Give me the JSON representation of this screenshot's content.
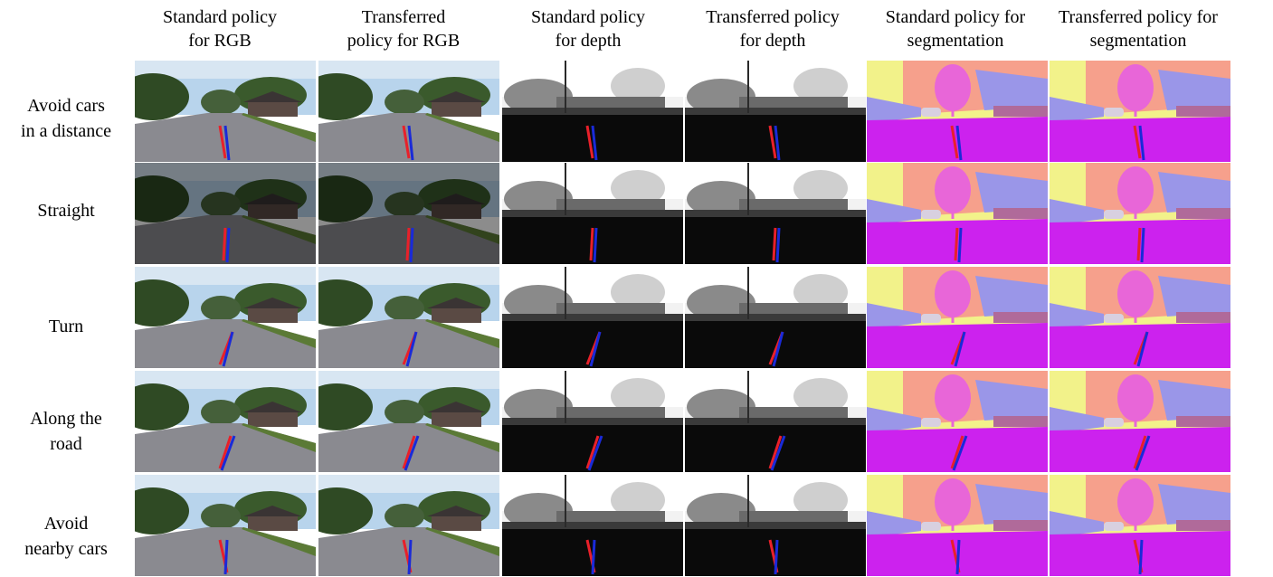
{
  "columns": [
    {
      "label": "Standard policy\nfor RGB",
      "modality": "rgb"
    },
    {
      "label": "Transferred\npolicy for RGB",
      "modality": "rgb"
    },
    {
      "label": "Standard policy\nfor depth",
      "modality": "depth"
    },
    {
      "label": "Transferred policy\nfor depth",
      "modality": "depth"
    },
    {
      "label": "Standard policy for\nsegmentation",
      "modality": "seg"
    },
    {
      "label": "Transferred policy for\nsegmentation",
      "modality": "seg"
    }
  ],
  "rows": [
    {
      "label": "Avoid cars\nin a distance"
    },
    {
      "label": "Straight"
    },
    {
      "label": "Turn"
    },
    {
      "label": "Along the\nroad"
    },
    {
      "label": "Avoid\nnearby cars"
    }
  ],
  "colors": {
    "red_line": "#e8202a",
    "blue_line": "#1a2ad8",
    "seg_road": "#cc22ee",
    "seg_sky": "#f2f28a",
    "seg_building": "#f6a08c",
    "seg_tree": "#e866d8",
    "seg_sidewalk": "#9a96e8",
    "seg_fence": "#b06a9a",
    "seg_car": "#d8d0e0",
    "rgb_sky": "#b8d4ec",
    "rgb_road": "#8a8a90",
    "rgb_tree": "#2f4a24"
  }
}
